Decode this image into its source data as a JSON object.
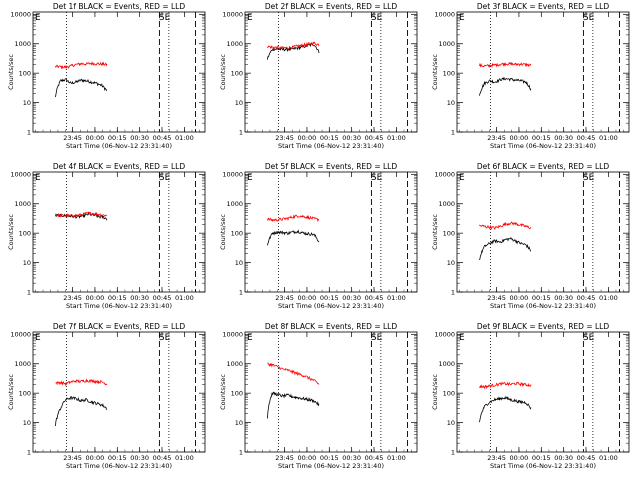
{
  "chart_data": [
    {
      "type": "line",
      "title": "Det 1f BLACK = Events, RED = LLD",
      "xlabel": "Start Time (06-Nov-12 23:31:40)",
      "ylabel": "Counts/sec",
      "xticks": [
        "23:45",
        "00:00",
        "00:15",
        "00:30",
        "00:45",
        "01:00"
      ],
      "yticks": [
        "1",
        "10",
        "100",
        "1000",
        "10000"
      ],
      "ylim": [
        1,
        12000
      ],
      "scale": "log",
      "markers": [
        "E",
        "SE"
      ],
      "colors": {
        "events": "#000000",
        "lld": "#ff0000"
      },
      "series": [
        {
          "name": "Events",
          "values": [
            15,
            55,
            60,
            45,
            50,
            58,
            55,
            50,
            45,
            38,
            25
          ]
        },
        {
          "name": "LLD",
          "values": [
            170,
            165,
            160,
            175,
            195,
            210,
            205,
            215,
            210,
            205,
            195
          ]
        }
      ]
    },
    {
      "type": "line",
      "title": "Det 2f BLACK = Events, RED = LLD",
      "xlabel": "Start Time (06-Nov-12 23:31:40)",
      "ylabel": "Counts/sec",
      "xticks": [
        "23:45",
        "00:00",
        "00:15",
        "00:30",
        "00:45",
        "01:00"
      ],
      "yticks": [
        "1",
        "10",
        "100",
        "1000",
        "10000"
      ],
      "ylim": [
        1,
        12000
      ],
      "scale": "log",
      "markers": [
        "E",
        "SE"
      ],
      "colors": {
        "events": "#000000",
        "lld": "#ff0000"
      },
      "series": [
        {
          "name": "Events",
          "values": [
            300,
            650,
            660,
            640,
            640,
            670,
            720,
            800,
            880,
            960,
            520
          ]
        },
        {
          "name": "LLD",
          "values": [
            800,
            760,
            740,
            720,
            730,
            770,
            830,
            900,
            980,
            1050,
            920
          ]
        }
      ]
    },
    {
      "type": "line",
      "title": "Det 3f BLACK = Events, RED = LLD",
      "xlabel": "Start Time (06-Nov-12 23:31:40)",
      "ylabel": "Counts/sec",
      "xticks": [
        "23:45",
        "00:00",
        "00:15",
        "00:30",
        "00:45",
        "01:00"
      ],
      "yticks": [
        "1",
        "10",
        "100",
        "1000",
        "10000"
      ],
      "ylim": [
        1,
        12000
      ],
      "scale": "log",
      "markers": [
        "E",
        "SE"
      ],
      "colors": {
        "events": "#000000",
        "lld": "#ff0000"
      },
      "series": [
        {
          "name": "Events",
          "values": [
            18,
            45,
            55,
            50,
            60,
            65,
            62,
            58,
            55,
            50,
            28
          ]
        },
        {
          "name": "LLD",
          "values": [
            185,
            175,
            180,
            190,
            200,
            210,
            205,
            200,
            205,
            195,
            185
          ]
        }
      ]
    },
    {
      "type": "line",
      "title": "Det 4f BLACK = Events, RED = LLD",
      "xlabel": "Start Time (06-Nov-12 23:31:40)",
      "ylabel": "Counts/sec",
      "xticks": [
        "23:45",
        "00:00",
        "00:15",
        "00:30",
        "00:45",
        "01:00"
      ],
      "yticks": [
        "1",
        "10",
        "100",
        "1000",
        "10000"
      ],
      "ylim": [
        1,
        12000
      ],
      "scale": "log",
      "markers": [
        "E",
        "SE"
      ],
      "colors": {
        "events": "#000000",
        "lld": "#ff0000"
      },
      "series": [
        {
          "name": "Events",
          "values": [
            400,
            400,
            395,
            390,
            380,
            370,
            360,
            370,
            400,
            440,
            420,
            390,
            360,
            350,
            300
          ]
        },
        {
          "name": "LLD",
          "values": [
            410,
            405,
            400,
            395,
            390,
            395,
            400,
            420,
            450,
            480,
            470,
            450,
            430,
            410,
            400
          ]
        }
      ]
    },
    {
      "type": "line",
      "title": "Det 5f BLACK = Events, RED = LLD",
      "xlabel": "Start Time (06-Nov-12 23:31:40)",
      "ylabel": "Counts/sec",
      "xticks": [
        "23:45",
        "00:00",
        "00:15",
        "00:30",
        "00:45",
        "01:00"
      ],
      "yticks": [
        "1",
        "10",
        "100",
        "1000",
        "10000"
      ],
      "ylim": [
        1,
        12000
      ],
      "scale": "log",
      "markers": [
        "E",
        "SE"
      ],
      "colors": {
        "events": "#000000",
        "lld": "#ff0000"
      },
      "series": [
        {
          "name": "Events",
          "values": [
            40,
            100,
            110,
            105,
            100,
            110,
            115,
            100,
            95,
            90,
            50
          ]
        },
        {
          "name": "LLD",
          "values": [
            300,
            280,
            285,
            300,
            320,
            360,
            390,
            370,
            340,
            310,
            290
          ]
        }
      ]
    },
    {
      "type": "line",
      "title": "Det 6f BLACK = Events, RED = LLD",
      "xlabel": "Start Time (06-Nov-12 23:31:40)",
      "ylabel": "Counts/sec",
      "xticks": [
        "23:45",
        "00:00",
        "00:15",
        "00:30",
        "00:45",
        "01:00"
      ],
      "yticks": [
        "1",
        "10",
        "100",
        "1000",
        "10000"
      ],
      "ylim": [
        1,
        12000
      ],
      "scale": "log",
      "markers": [
        "E",
        "SE"
      ],
      "colors": {
        "events": "#000000",
        "lld": "#ff0000"
      },
      "series": [
        {
          "name": "Events",
          "values": [
            12,
            35,
            45,
            55,
            50,
            60,
            65,
            55,
            45,
            40,
            25
          ]
        },
        {
          "name": "LLD",
          "values": [
            180,
            170,
            160,
            150,
            170,
            200,
            220,
            210,
            190,
            170,
            150
          ]
        }
      ]
    },
    {
      "type": "line",
      "title": "Det 7f BLACK = Events, RED = LLD",
      "xlabel": "Start Time (06-Nov-12 23:31:40)",
      "ylabel": "Counts/sec",
      "xticks": [
        "23:45",
        "00:00",
        "00:15",
        "00:30",
        "00:45",
        "01:00"
      ],
      "yticks": [
        "1",
        "10",
        "100",
        "1000",
        "10000"
      ],
      "ylim": [
        1,
        12000
      ],
      "scale": "log",
      "markers": [
        "E",
        "SE"
      ],
      "colors": {
        "events": "#000000",
        "lld": "#ff0000"
      },
      "series": [
        {
          "name": "Events",
          "values": [
            8,
            30,
            60,
            70,
            65,
            55,
            60,
            50,
            45,
            40,
            30
          ]
        },
        {
          "name": "LLD",
          "values": [
            220,
            230,
            210,
            240,
            260,
            250,
            270,
            260,
            250,
            240,
            200
          ]
        }
      ]
    },
    {
      "type": "line",
      "title": "Det 8f BLACK = Events, RED = LLD",
      "xlabel": "Start Time (06-Nov-12 23:31:40)",
      "ylabel": "Counts/sec",
      "xticks": [
        "23:45",
        "00:00",
        "00:15",
        "00:30",
        "00:45",
        "01:00"
      ],
      "yticks": [
        "1",
        "10",
        "100",
        "1000",
        "10000"
      ],
      "ylim": [
        1,
        12000
      ],
      "scale": "log",
      "markers": [
        "E",
        "SE"
      ],
      "colors": {
        "events": "#000000",
        "lld": "#ff0000"
      },
      "series": [
        {
          "name": "Events",
          "values": [
            15,
            100,
            90,
            80,
            85,
            75,
            70,
            65,
            60,
            55,
            40
          ]
        },
        {
          "name": "LLD",
          "values": [
            1000,
            900,
            780,
            650,
            600,
            520,
            450,
            400,
            330,
            270,
            200
          ]
        }
      ]
    },
    {
      "type": "line",
      "title": "Det 9f BLACK = Events, RED = LLD",
      "xlabel": "Start Time (06-Nov-12 23:31:40)",
      "ylabel": "Counts/sec",
      "xticks": [
        "23:45",
        "00:00",
        "00:15",
        "00:30",
        "00:45",
        "01:00"
      ],
      "yticks": [
        "1",
        "10",
        "100",
        "1000",
        "10000"
      ],
      "ylim": [
        1,
        12000
      ],
      "scale": "log",
      "markers": [
        "E",
        "SE"
      ],
      "colors": {
        "events": "#000000",
        "lld": "#ff0000"
      },
      "series": [
        {
          "name": "Events",
          "values": [
            10,
            35,
            50,
            60,
            65,
            70,
            60,
            55,
            50,
            48,
            30
          ]
        },
        {
          "name": "LLD",
          "values": [
            170,
            165,
            175,
            190,
            205,
            210,
            200,
            215,
            205,
            195,
            185
          ]
        }
      ]
    }
  ]
}
